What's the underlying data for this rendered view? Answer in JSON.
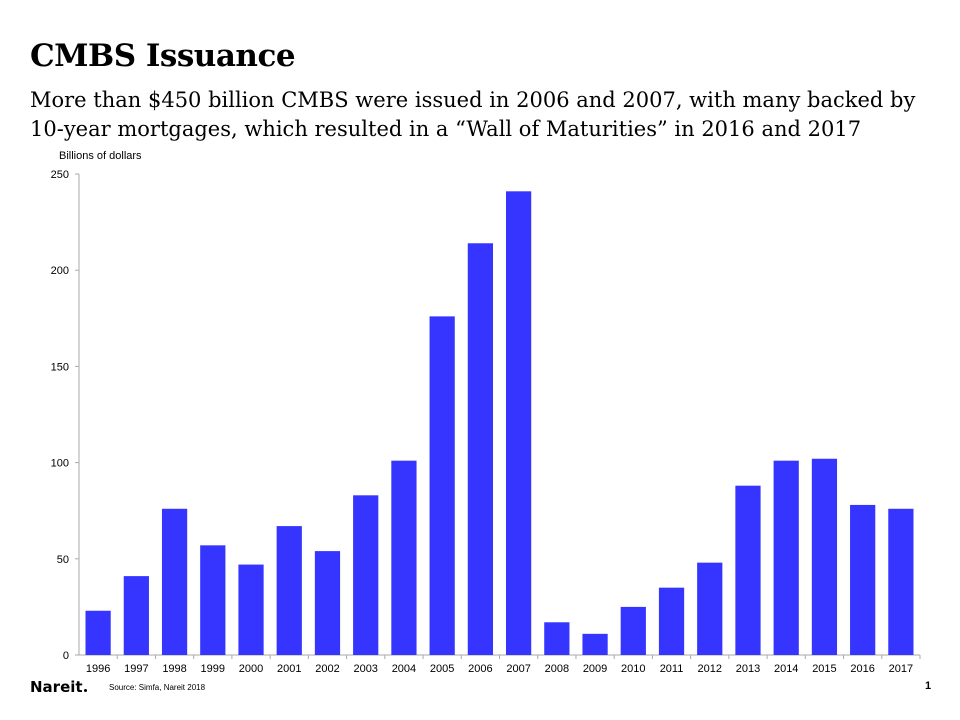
{
  "header": {
    "title": "CMBS Issuance",
    "subtitle": "More than $450 billion CMBS were issued in 2006 and 2007, with many backed by 10-year mortgages, which resulted in a “Wall of Maturities” in 2016 and 2017"
  },
  "footer": {
    "logo_text": "Nareit",
    "source": "Source: Simfa, Nareit 2018",
    "page_number": "1"
  },
  "colors": {
    "bar": "#3535ff",
    "axis": "#aaaaaa"
  },
  "chart_data": {
    "type": "bar",
    "ylabel": "Billions of dollars",
    "categories": [
      "1996",
      "1997",
      "1998",
      "1999",
      "2000",
      "2001",
      "2002",
      "2003",
      "2004",
      "2005",
      "2006",
      "2007",
      "2008",
      "2009",
      "2010",
      "2011",
      "2012",
      "2013",
      "2014",
      "2015",
      "2016",
      "2017"
    ],
    "values": [
      23,
      41,
      76,
      57,
      47,
      67,
      54,
      83,
      101,
      176,
      214,
      241,
      17,
      11,
      25,
      35,
      48,
      88,
      101,
      102,
      78,
      76
    ],
    "ylim": [
      0,
      250
    ],
    "yticks": [
      0,
      50,
      100,
      150,
      200,
      250
    ],
    "grid": false,
    "legend": "none"
  }
}
